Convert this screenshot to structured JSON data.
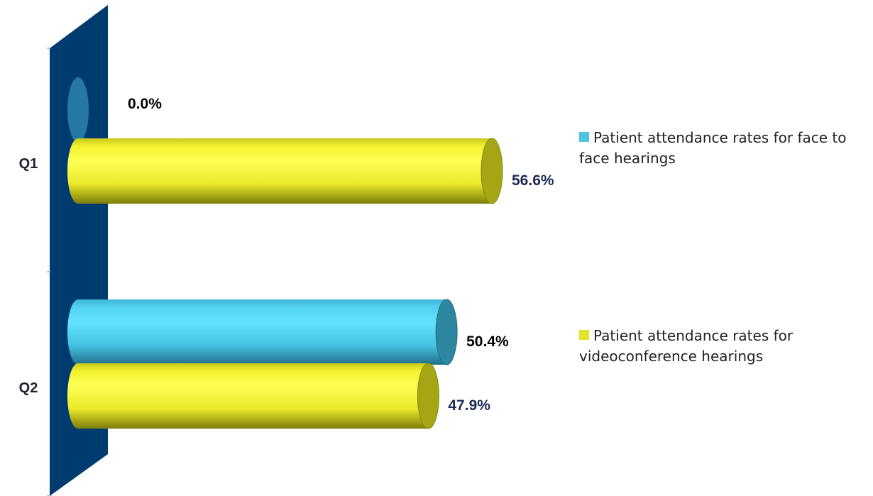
{
  "chart_data": {
    "type": "bar",
    "orientation": "horizontal",
    "style": "3d-cylinder",
    "categories": [
      "Q1",
      "Q2"
    ],
    "series": [
      {
        "name": "Patient attendance rates for face to face hearings",
        "values": [
          0.0,
          50.4
        ],
        "labels": [
          "0.0%",
          "50.4%"
        ],
        "color": "#4FC3E3"
      },
      {
        "name": "Patient attendance rates for videoconference hearings",
        "values": [
          56.6,
          47.9
        ],
        "labels": [
          "56.6%",
          "47.9%"
        ],
        "color": "#E3E32A"
      }
    ],
    "xlim": [
      0,
      70
    ],
    "unit": "%",
    "legend_position": "right",
    "gridlines": false,
    "wall_color": "#003B6F",
    "label_colors": [
      "#000000",
      "#1E2A55"
    ]
  }
}
